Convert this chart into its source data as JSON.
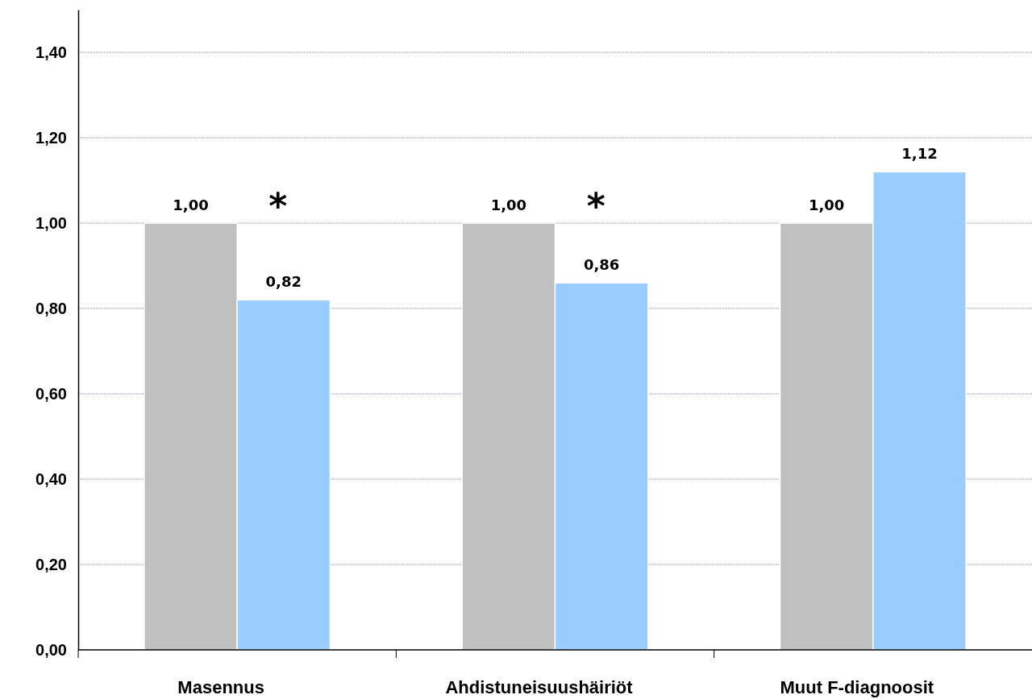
{
  "chart_data": {
    "type": "bar",
    "categories": [
      "Masennus",
      "Ahdistuneisuushäiriöt",
      "Muut F-diagnoosit"
    ],
    "series": [
      {
        "color": "#c0c0c0",
        "values": [
          1.0,
          1.0,
          1.0
        ],
        "value_labels": [
          "1,00",
          "1,00",
          "1,00"
        ]
      },
      {
        "color": "#99ccff",
        "values": [
          0.82,
          0.86,
          1.12
        ],
        "value_labels": [
          "0,82",
          "0,86",
          "1,12"
        ]
      }
    ],
    "ylim": [
      0,
      1.5
    ],
    "yticks": [
      {
        "value": 0,
        "label": "0,00"
      },
      {
        "value": 0.2,
        "label": "0,20"
      },
      {
        "value": 0.4,
        "label": "0,40"
      },
      {
        "value": 0.6,
        "label": "0,60"
      },
      {
        "value": 0.8,
        "label": "0,80"
      },
      {
        "value": 1,
        "label": "1,00"
      },
      {
        "value": 1.2,
        "label": "1,20"
      },
      {
        "value": 1.4,
        "label": "1,40"
      }
    ],
    "grid": "y",
    "annotations": [
      "*",
      "*"
    ]
  }
}
